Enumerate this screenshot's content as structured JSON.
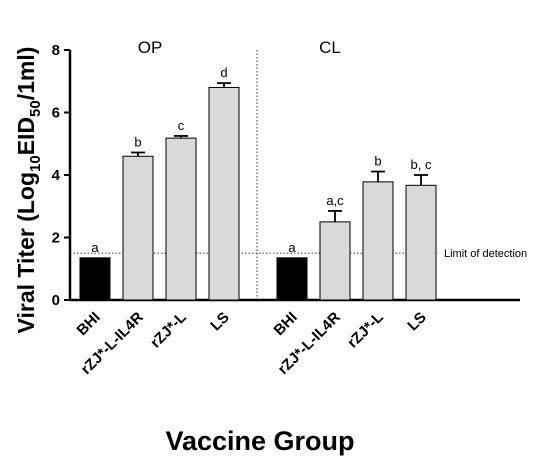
{
  "chart_data": {
    "type": "bar",
    "xlabel": "Vaccine Group",
    "ylabel_parts": {
      "pre": "Viral Titer (Log",
      "sub1": "10",
      "mid": "EID",
      "sub2": "50",
      "post": "/1ml)"
    },
    "ylim": [
      0,
      8
    ],
    "yticks": [
      "0",
      "2",
      "4",
      "6",
      "8"
    ],
    "limit_of_detection": {
      "value": 1.5,
      "label": "Limit of detection"
    },
    "colors": {
      "BHI": "#000000",
      "default": "#d9d9d9"
    },
    "panels": [
      {
        "title": "OP",
        "categories": [
          "BHI",
          "rZJ*-L-IL4R",
          "rZJ*-L",
          "LS"
        ],
        "values": [
          1.35,
          4.6,
          5.18,
          6.8
        ],
        "errors": [
          0,
          0.12,
          0.07,
          0.14
        ],
        "letters": [
          "a",
          "b",
          "c",
          "d"
        ]
      },
      {
        "title": "CL",
        "categories": [
          "BHI",
          "rZJ*-L-IL4R",
          "rZJ*-L",
          "LS"
        ],
        "values": [
          1.35,
          2.5,
          3.78,
          3.67
        ],
        "errors": [
          0,
          0.35,
          0.33,
          0.33
        ],
        "letters": [
          "a",
          "a,c",
          "b",
          "b, c"
        ]
      }
    ]
  }
}
